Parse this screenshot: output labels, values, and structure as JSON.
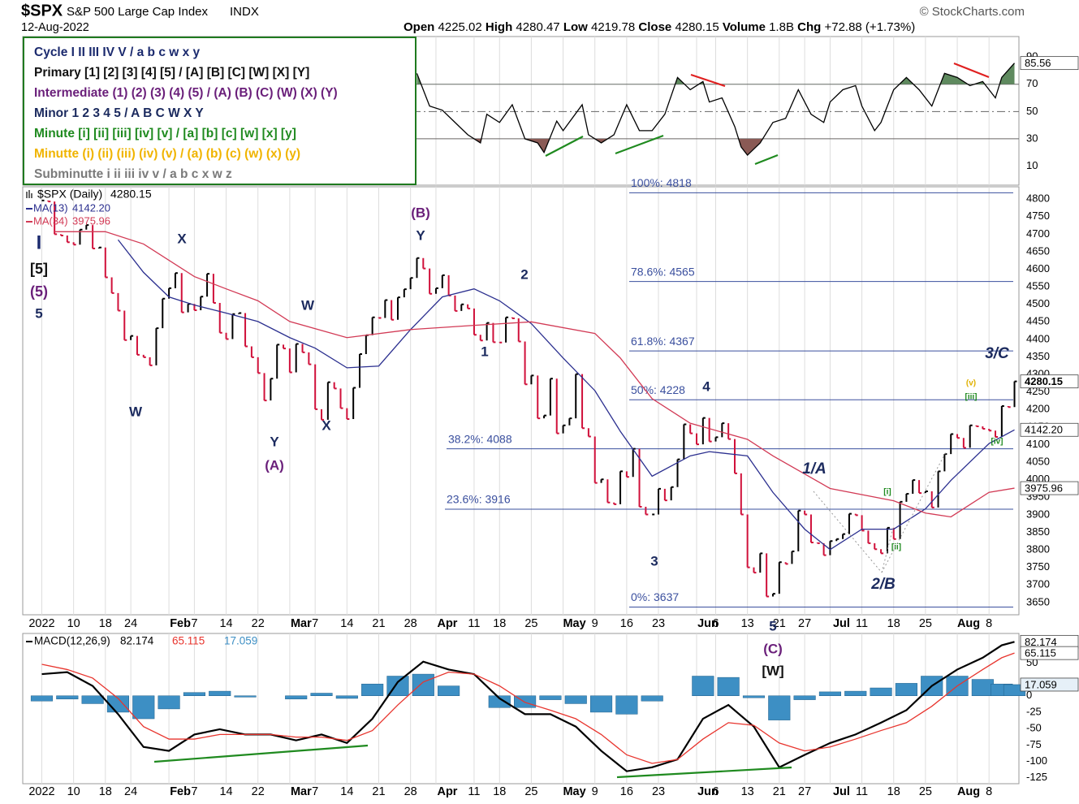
{
  "header": {
    "symbol": "$SPX",
    "name": "S&P 500 Large Cap Index",
    "exchange": "INDX",
    "source": "© StockCharts.com",
    "date": "12-Aug-2022",
    "quote": [
      {
        "label": "Open",
        "value": "4225.02"
      },
      {
        "label": "High",
        "value": "4280.47"
      },
      {
        "label": "Low",
        "value": "4219.78"
      },
      {
        "label": "Close",
        "value": "4280.15"
      },
      {
        "label": "Volume",
        "value": "1.8B"
      },
      {
        "label": "Chg",
        "value": "+72.88 (+1.73%)"
      }
    ]
  },
  "wave_legend": [
    "Cycle I II III IV V / a b c w x y",
    "Primary [1] [2] [3] [4] [5] / [A] [B] [C] [W] [X] [Y]",
    "Intermediate (1) (2) (3) (4) (5) / (A) (B) (C) (W) (X) (Y)",
    "Minor 1 2 3 4 5 / A B C W X Y",
    "Minute [i] [ii] [iii] [iv] [v] / [a] [b] [c] [w] [x] [y]",
    "Minutte (i) (ii) (iii) (iv) (v) / (a) (b) (c) (w) (x) (y)",
    "Subminutte i ii iii iv v / a b c x w z"
  ],
  "wave_legend_colors": [
    "#1b2a6e",
    "#111111",
    "#6a1f7a",
    "#1b2a5e",
    "#1f8a1f",
    "#f0b400",
    "#7a7a7a"
  ],
  "chart_data": [
    {
      "type": "rsi",
      "ylim": [
        -4,
        105
      ],
      "yticks": [
        10,
        30,
        50,
        70,
        90
      ],
      "overbought": 70,
      "oversold": 30,
      "overbought_color": "#5f8a5f",
      "oversold_color": "#8a5a55",
      "series": [
        {
          "color": "#000000",
          "x": [
            59,
            61,
            63,
            65,
            67,
            69,
            70,
            72,
            74,
            76,
            78,
            79,
            81,
            82,
            85,
            86,
            88,
            90,
            92,
            94,
            96,
            98,
            100,
            102,
            104,
            105,
            107,
            109,
            110,
            111,
            113,
            115,
            117,
            119,
            121,
            123,
            124,
            126,
            128,
            129,
            131,
            132,
            134,
            136,
            138,
            140,
            142,
            144,
            146,
            148,
            150,
            151,
            153
          ],
          "values": [
            78,
            54,
            51,
            42,
            33,
            27,
            48,
            42,
            55,
            30,
            27,
            20,
            43,
            36,
            55,
            33,
            27,
            33,
            55,
            36,
            36,
            48,
            75,
            66,
            72,
            57,
            60,
            39,
            24,
            18,
            27,
            42,
            45,
            66,
            48,
            42,
            57,
            66,
            69,
            54,
            36,
            42,
            66,
            75,
            66,
            54,
            78,
            75,
            69,
            72,
            60,
            75,
            85.56
          ]
        }
      ]
    },
    {
      "type": "price",
      "xlim": [
        -3,
        153.7
      ],
      "ylim": [
        3615,
        4835
      ],
      "yticks": [
        3650,
        3700,
        3750,
        3800,
        3850,
        3900,
        3950,
        4000,
        4050,
        4100,
        4150,
        4200,
        4250,
        4300,
        4350,
        4400,
        4450,
        4500,
        4550,
        4600,
        4650,
        4700,
        4750,
        4800
      ],
      "xticks": [
        {
          "value": 0,
          "label": "2022"
        },
        {
          "value": 5,
          "label": "10"
        },
        {
          "value": 10,
          "label": "18"
        },
        {
          "value": 14,
          "label": "24"
        },
        {
          "value": 20,
          "label": "Feb"
        },
        {
          "value": 24,
          "label": "7"
        },
        {
          "value": 29,
          "label": "14"
        },
        {
          "value": 34,
          "label": "22"
        },
        {
          "value": 39,
          "label": "Mar"
        },
        {
          "value": 43,
          "label": "7"
        },
        {
          "value": 48,
          "label": "14"
        },
        {
          "value": 53,
          "label": "21"
        },
        {
          "value": 58,
          "label": "28"
        },
        {
          "value": 62,
          "label": "Apr"
        },
        {
          "value": 68,
          "label": "11"
        },
        {
          "value": 72,
          "label": "18"
        },
        {
          "value": 77,
          "label": "25"
        },
        {
          "value": 82,
          "label": "May"
        },
        {
          "value": 87,
          "label": "9"
        },
        {
          "value": 92,
          "label": "16"
        },
        {
          "value": 97,
          "label": "23"
        },
        {
          "value": 103,
          "label": "Jun"
        },
        {
          "value": 106,
          "label": "6"
        },
        {
          "value": 111,
          "label": "13"
        },
        {
          "value": 116,
          "label": "21"
        },
        {
          "value": 120,
          "label": "27"
        },
        {
          "value": 124,
          "label": "Jul"
        },
        {
          "value": 129,
          "label": "11"
        },
        {
          "value": 134,
          "label": "18"
        },
        {
          "value": 139,
          "label": "25"
        },
        {
          "value": 144,
          "label": "Aug"
        },
        {
          "value": 149,
          "label": "8"
        }
      ],
      "grid": true,
      "series": [
        {
          "name": "$SPX (Daily)",
          "color": "#000000",
          "down_color": "#d0103a",
          "values": [
            4796,
            4793,
            4700,
            4696,
            4677,
            4670,
            4713,
            4726,
            4659,
            4662,
            4577,
            4532,
            4482,
            4398,
            4410,
            4356,
            4349,
            4326,
            4432,
            4516,
            4546,
            4589,
            4477,
            4501,
            4483,
            4522,
            4587,
            4504,
            4419,
            4401,
            4472,
            4475,
            4380,
            4349,
            4304,
            4226,
            4288,
            4385,
            4374,
            4306,
            4387,
            4363,
            4329,
            4201,
            4171,
            4278,
            4260,
            4204,
            4173,
            4262,
            4358,
            4412,
            4463,
            4461,
            4512,
            4456,
            4520,
            4543,
            4575,
            4632,
            4602,
            4530,
            4546,
            4583,
            4525,
            4481,
            4500,
            4488,
            4413,
            4397,
            4447,
            4392,
            4391,
            4463,
            4460,
            4394,
            4272,
            4297,
            4175,
            4183,
            4288,
            4132,
            4155,
            4175,
            4301,
            4147,
            4123,
            3991,
            4001,
            3935,
            3930,
            4024,
            4008,
            4088,
            3923,
            3901,
            3901,
            3974,
            3941,
            3979,
            4058,
            4158,
            4132,
            4101,
            4176,
            4109,
            4121,
            4161,
            4116,
            4018,
            3901,
            3750,
            3735,
            3790,
            3667,
            3675,
            3765,
            3760,
            3796,
            3912,
            3901,
            3821,
            3819,
            3785,
            3825,
            3831,
            3845,
            3903,
            3899,
            3855,
            3819,
            3802,
            3790,
            3863,
            3831,
            3937,
            3960,
            3999,
            3962,
            3967,
            3921,
            4024,
            4073,
            4130,
            4119,
            4091,
            4155,
            4152,
            4145,
            4140,
            4122,
            4210,
            4207,
            4280.15
          ]
        },
        {
          "name": "MA(13)",
          "value_tag": "4142.20",
          "color": "#2b2f8f",
          "x": [
            12,
            16,
            20,
            24,
            29,
            34,
            39,
            43,
            48,
            53,
            58,
            63,
            68,
            72,
            77,
            82,
            87,
            91,
            96,
            102,
            105,
            111,
            115,
            120,
            124,
            129,
            134,
            139,
            143,
            149,
            153
          ],
          "values": [
            4684,
            4591,
            4521,
            4498,
            4475,
            4451,
            4405,
            4375,
            4319,
            4324,
            4428,
            4521,
            4544,
            4510,
            4445,
            4347,
            4254,
            4138,
            4010,
            4068,
            4080,
            4068,
            3964,
            3859,
            3801,
            3859,
            3859,
            3917,
            3998,
            4103,
            4142.2
          ]
        },
        {
          "name": "MA(34)",
          "value_tag": "3975.96",
          "color": "#d23a55",
          "x": [
            2,
            10,
            16,
            24,
            29,
            34,
            39,
            48,
            58,
            68,
            77,
            87,
            91,
            96,
            102,
            111,
            115,
            124,
            134,
            139,
            143,
            149,
            153
          ],
          "values": [
            4707,
            4707,
            4672,
            4579,
            4544,
            4510,
            4451,
            4405,
            4428,
            4440,
            4450,
            4417,
            4347,
            4231,
            4161,
            4115,
            4068,
            3975,
            3940,
            3905,
            3894,
            3964,
            3975.96
          ]
        }
      ],
      "fib": [
        {
          "label": "100%: 4818",
          "value": 4818
        },
        {
          "label": "78.6%: 4565",
          "value": 4565
        },
        {
          "label": "61.8%: 4367",
          "value": 4367
        },
        {
          "label": "50%: 4228",
          "value": 4228
        },
        {
          "label": "38.2%: 4088",
          "value": 4088
        },
        {
          "label": "23.6%: 3916",
          "value": 3916
        },
        {
          "label": "0%: 3637",
          "value": 3637
        }
      ],
      "fib_color": "#3a4f9e",
      "annotations": [
        {
          "text": "I",
          "color": "#1b2a6e"
        },
        {
          "text": "[5]",
          "color": "#111111"
        },
        {
          "text": "(5)",
          "color": "#6a1f7a"
        },
        {
          "text": "5",
          "color": "#1b2a5e"
        },
        {
          "text": "X",
          "color": "#1b2a5e"
        },
        {
          "text": "W",
          "color": "#1b2a5e"
        },
        {
          "text": "Y",
          "color": "#1b2a5e"
        },
        {
          "text": "(A)",
          "color": "#6a1f7a"
        },
        {
          "text": "W",
          "color": "#1b2a5e"
        },
        {
          "text": "X",
          "color": "#1b2a5e"
        },
        {
          "text": "(B)",
          "color": "#6a1f7a"
        },
        {
          "text": "Y",
          "color": "#1b2a5e"
        },
        {
          "text": "1",
          "color": "#1b2a5e"
        },
        {
          "text": "2",
          "color": "#1b2a5e"
        },
        {
          "text": "3",
          "color": "#1b2a5e"
        },
        {
          "text": "4",
          "color": "#1b2a5e"
        },
        {
          "text": "5",
          "color": "#1b2a5e"
        },
        {
          "text": "(C)",
          "color": "#6a1f7a"
        },
        {
          "text": "[W]",
          "color": "#111111"
        },
        {
          "text": "1/A",
          "color": "#1b2a5e"
        },
        {
          "text": "2/B",
          "color": "#1b2a5e"
        },
        {
          "text": "3/C",
          "color": "#1b2a5e"
        },
        {
          "text": "[i]",
          "color": "#1f8a1f"
        },
        {
          "text": "[ii]",
          "color": "#1f8a1f"
        },
        {
          "text": "[iii]",
          "color": "#1f8a1f"
        },
        {
          "text": "[iv]",
          "color": "#1f8a1f"
        },
        {
          "text": "(v)",
          "color": "#e0b000"
        }
      ]
    },
    {
      "type": "macd",
      "title": "MACD(12,26,9)",
      "ylim": [
        -134,
        95
      ],
      "yticks": [
        -125,
        -100,
        -75,
        -50,
        -25,
        0,
        50
      ],
      "x": [
        0,
        4,
        8,
        12,
        16,
        20,
        24,
        28,
        32,
        36,
        40,
        44,
        48,
        52,
        56,
        60,
        64,
        68,
        72,
        76,
        80,
        84,
        88,
        92,
        96,
        100,
        104,
        108,
        112,
        116,
        120,
        124,
        128,
        132,
        136,
        140,
        144,
        148,
        151,
        153
      ],
      "series": [
        {
          "color": "#000000",
          "values": [
            33,
            36,
            15,
            -28,
            -78,
            -84,
            -59,
            -51,
            -59,
            -59,
            -68,
            -59,
            -72,
            -35,
            21,
            52,
            40,
            33,
            -4,
            -28,
            -28,
            -47,
            -84,
            -115,
            -109,
            -97,
            -35,
            -14,
            -47,
            -109,
            -90,
            -72,
            -59,
            -41,
            -22,
            15,
            40,
            58,
            77,
            82.174
          ]
        },
        {
          "color": "#e8352e",
          "values": [
            48,
            40,
            27,
            -4,
            -47,
            -66,
            -66,
            -59,
            -59,
            -59,
            -63,
            -63,
            -68,
            -53,
            -14,
            21,
            36,
            33,
            15,
            -10,
            -22,
            -35,
            -59,
            -90,
            -103,
            -97,
            -66,
            -41,
            -45,
            -72,
            -84,
            -78,
            -66,
            -53,
            -41,
            -16,
            15,
            40,
            58,
            65.115
          ]
        },
        {
          "color": "#3d8fc4",
          "kind": "histogram",
          "values": [
            -8,
            -5,
            -12,
            -25,
            -35,
            -20,
            5,
            7,
            -2,
            0,
            -5,
            4,
            -4,
            18,
            30,
            33,
            15,
            0,
            -18,
            -18,
            -6,
            -12,
            -25,
            -28,
            -8,
            0,
            30,
            28,
            -3,
            -37,
            -6,
            6,
            7,
            12,
            19,
            30,
            30,
            25,
            18,
            17.059
          ]
        }
      ]
    }
  ]
}
